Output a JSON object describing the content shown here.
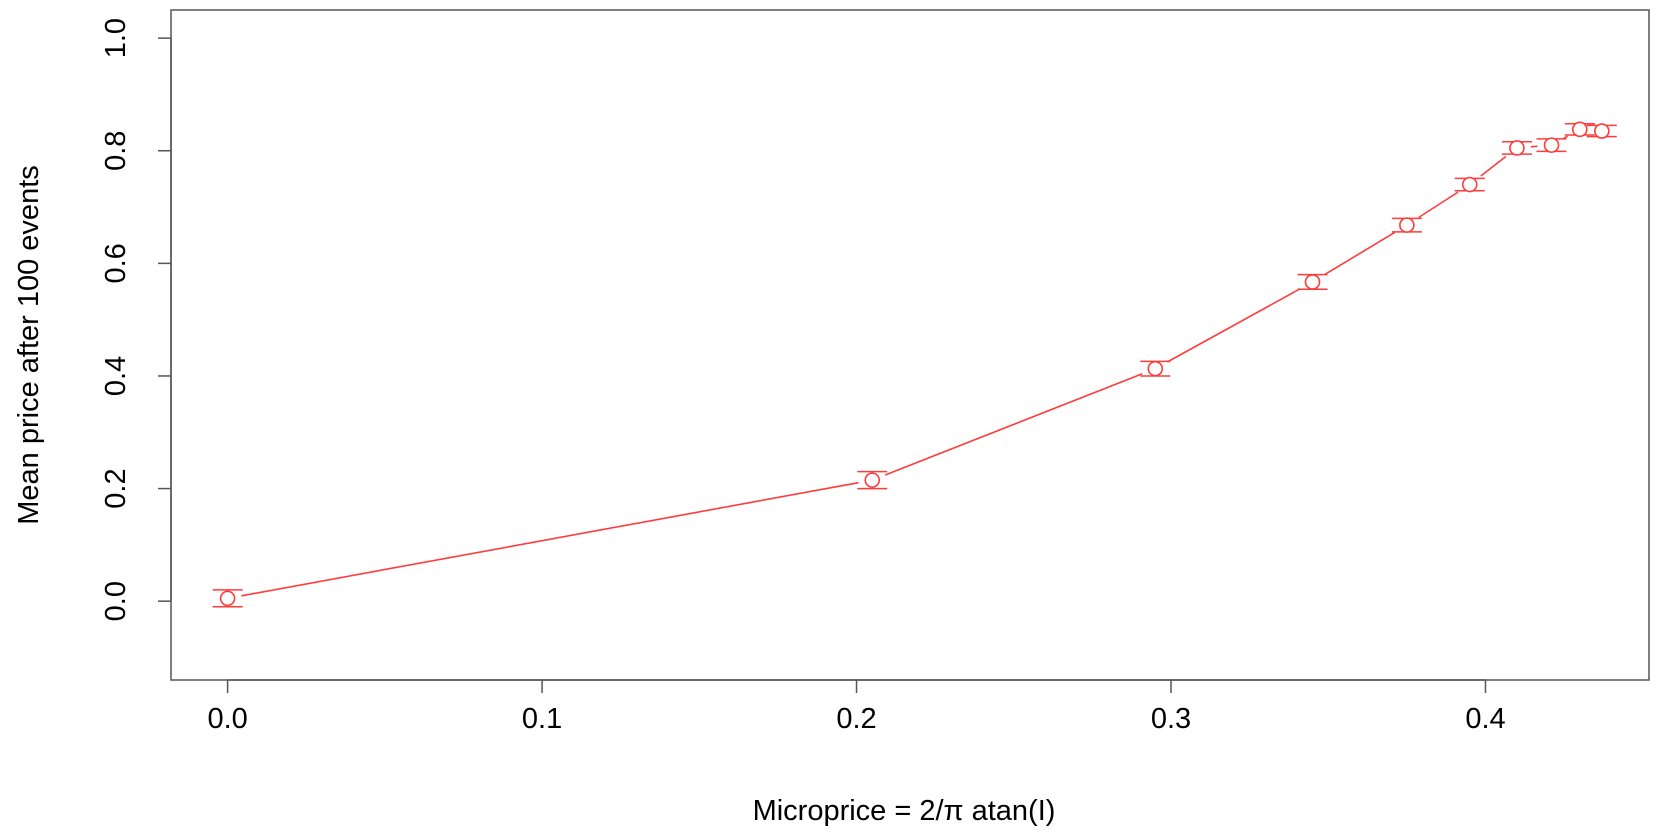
{
  "chart_data": {
    "type": "scatter",
    "xlabel": "Microprice = 2/π atan(I)",
    "ylabel": "Mean price after 100 events",
    "xlim": [
      -0.018,
      0.452
    ],
    "ylim": [
      -0.14,
      1.05
    ],
    "x_ticks": [
      {
        "value": 0.0,
        "label": "0.0"
      },
      {
        "value": 0.1,
        "label": "0.1"
      },
      {
        "value": 0.2,
        "label": "0.2"
      },
      {
        "value": 0.3,
        "label": "0.3"
      },
      {
        "value": 0.4,
        "label": "0.4"
      }
    ],
    "y_ticks": [
      {
        "value": 0.0,
        "label": "0.0"
      },
      {
        "value": 0.2,
        "label": "0.2"
      },
      {
        "value": 0.4,
        "label": "0.4"
      },
      {
        "value": 0.6,
        "label": "0.6"
      },
      {
        "value": 0.8,
        "label": "0.8"
      },
      {
        "value": 1.0,
        "label": "1.0"
      }
    ],
    "grid": false,
    "legend": "none",
    "series": [
      {
        "color": "#ff3b3b",
        "line": true,
        "marker": "open-circle",
        "error_bars": true,
        "points": [
          {
            "x": 0.0,
            "y": 0.005,
            "err": 0.015
          },
          {
            "x": 0.205,
            "y": 0.215,
            "err": 0.015
          },
          {
            "x": 0.295,
            "y": 0.413,
            "err": 0.013
          },
          {
            "x": 0.345,
            "y": 0.567,
            "err": 0.013
          },
          {
            "x": 0.375,
            "y": 0.668,
            "err": 0.012
          },
          {
            "x": 0.395,
            "y": 0.74,
            "err": 0.011
          },
          {
            "x": 0.41,
            "y": 0.805,
            "err": 0.011
          },
          {
            "x": 0.421,
            "y": 0.81,
            "err": 0.011
          },
          {
            "x": 0.43,
            "y": 0.838,
            "err": 0.01
          },
          {
            "x": 0.437,
            "y": 0.835,
            "err": 0.01
          }
        ]
      }
    ]
  }
}
